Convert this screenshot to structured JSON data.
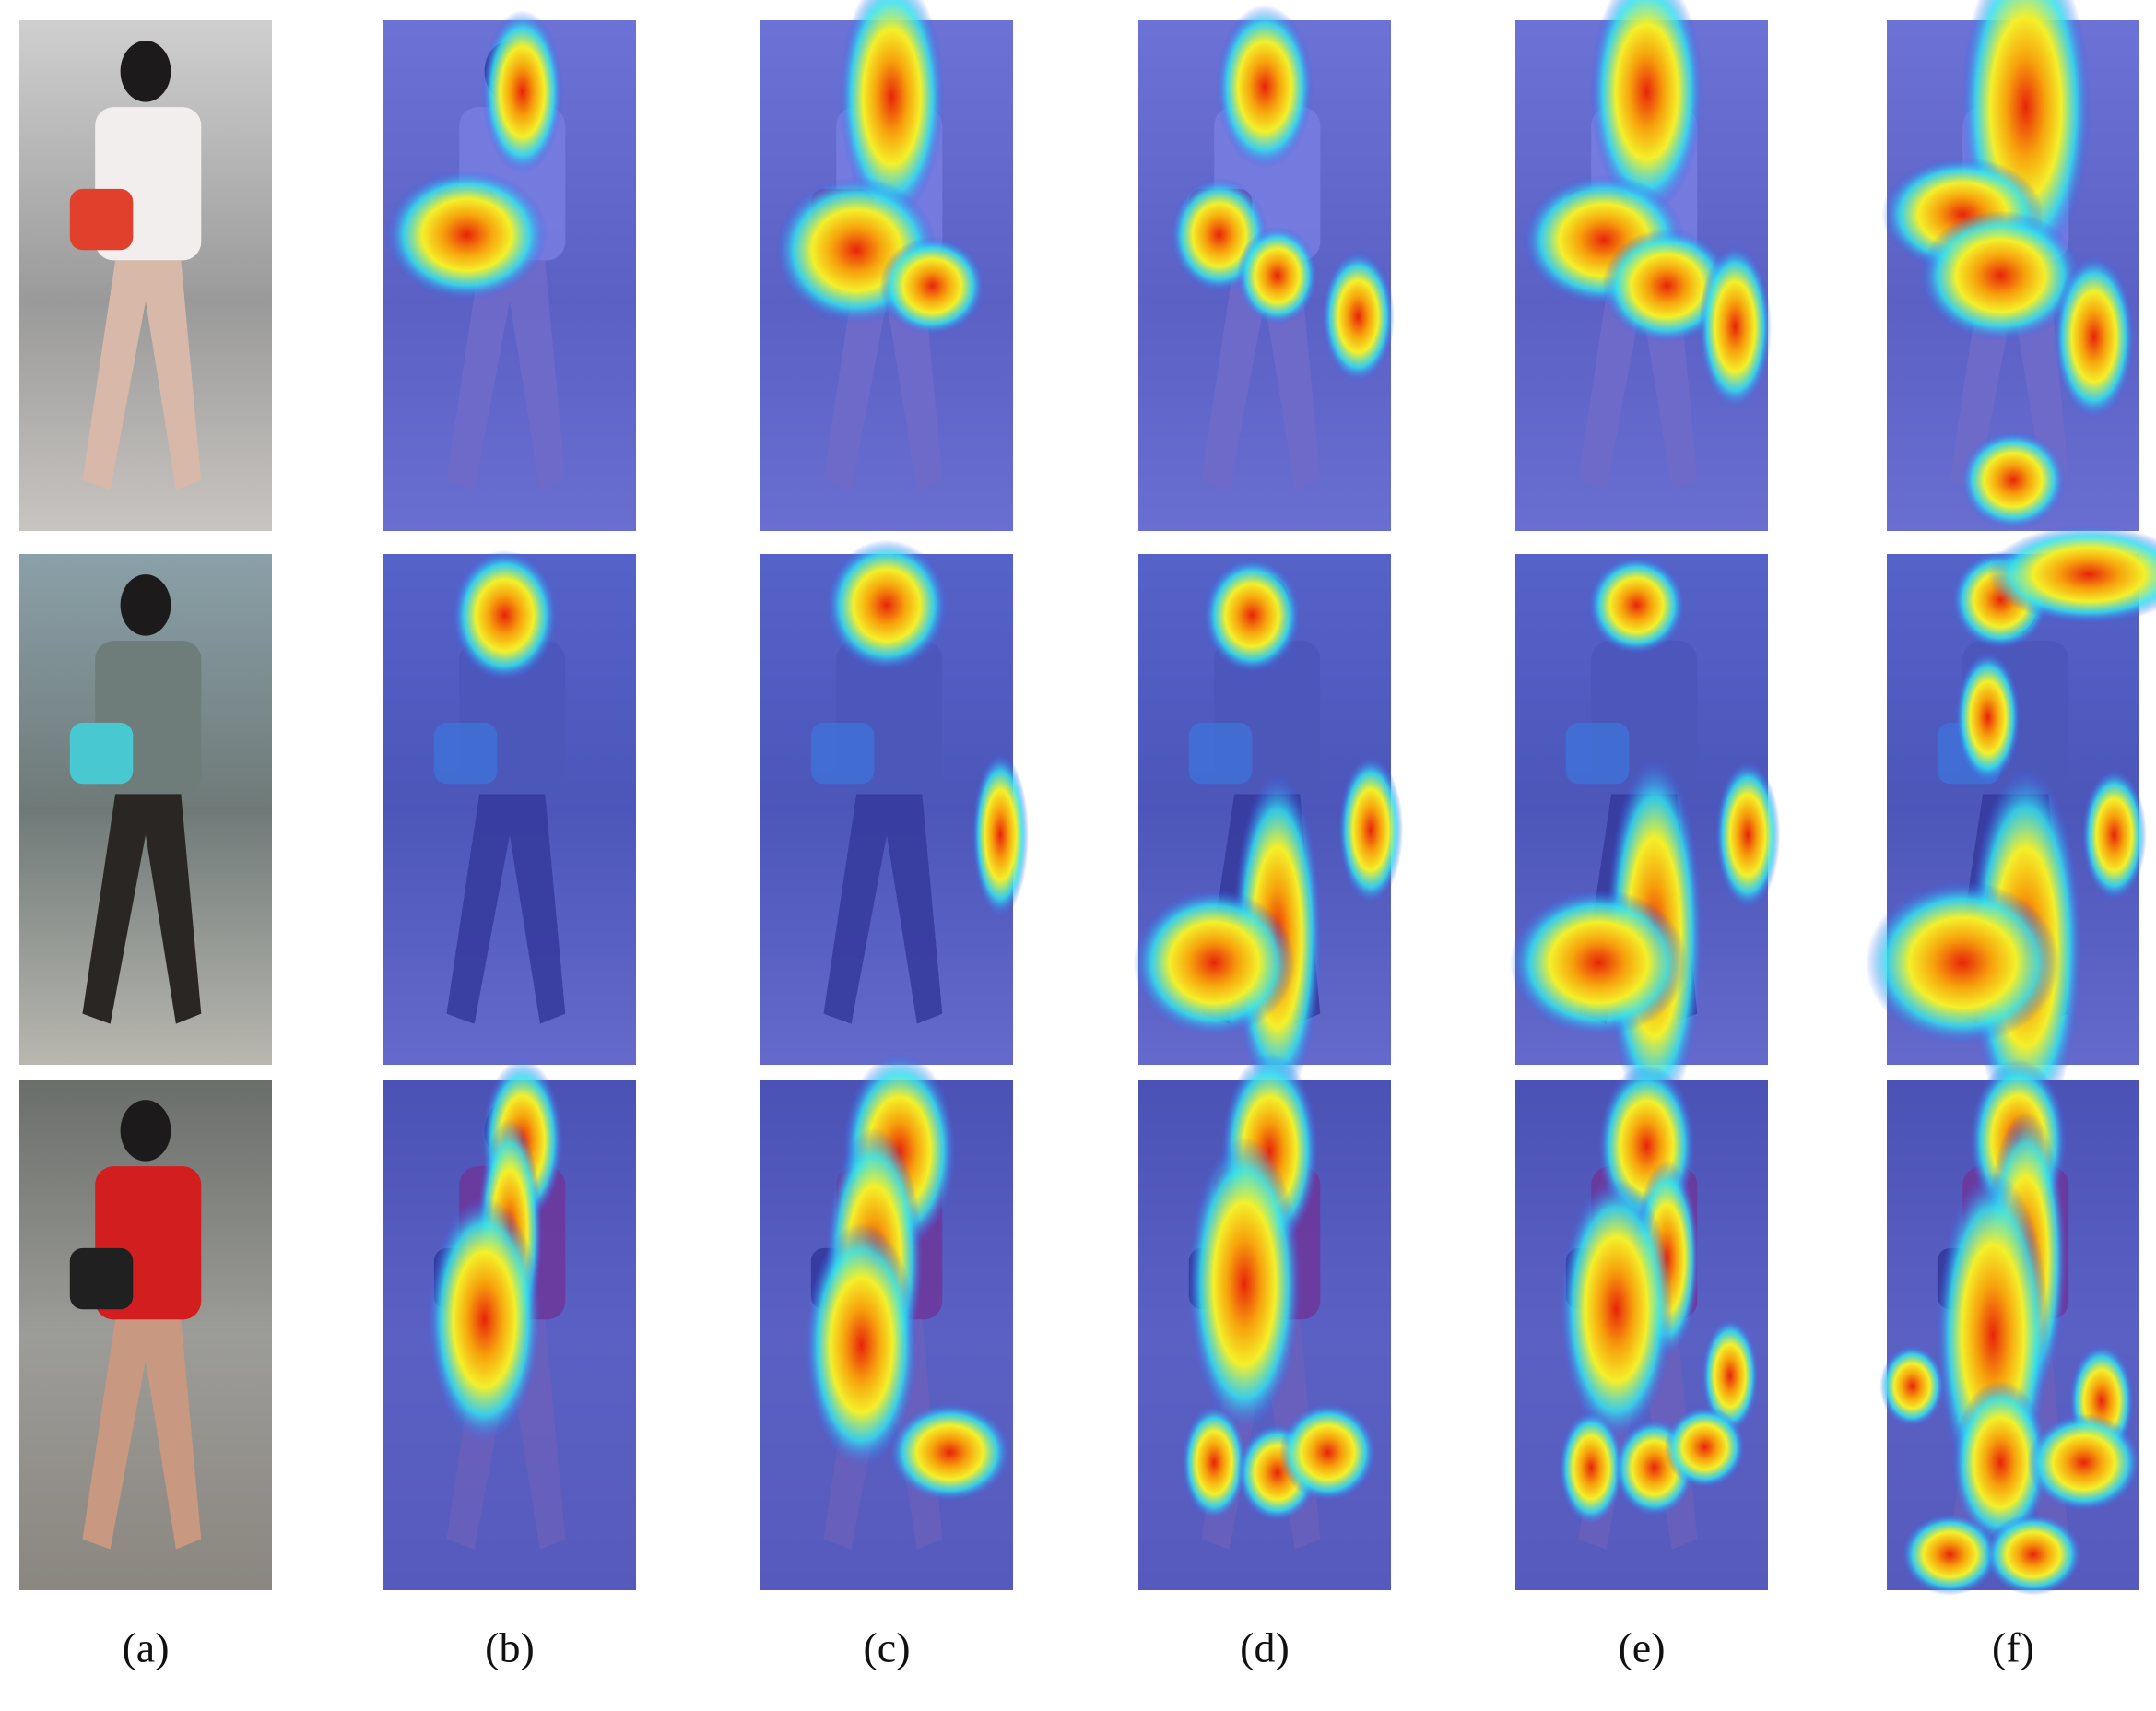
{
  "columns": {
    "labels": [
      "(a)",
      "(b)",
      "(c)",
      "(d)",
      "(e)",
      "(f)"
    ]
  }
}
